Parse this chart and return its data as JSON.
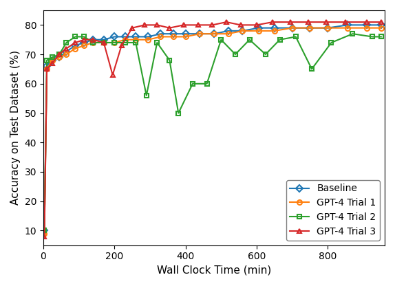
{
  "title": "",
  "xlabel": "Wall Clock Time (min)",
  "ylabel": "Accuracy on Test Dataset (%)",
  "xlim": [
    0,
    960
  ],
  "ylim": [
    5,
    85
  ],
  "yticks": [
    10,
    20,
    30,
    40,
    50,
    60,
    70,
    80
  ],
  "xticks": [
    0,
    200,
    400,
    600,
    800
  ],
  "series": {
    "Baseline": {
      "color": "#1f77b4",
      "marker": "D",
      "markersize": 5,
      "x": [
        0,
        3,
        10,
        25,
        45,
        65,
        90,
        115,
        140,
        170,
        200,
        230,
        260,
        295,
        330,
        365,
        400,
        440,
        480,
        520,
        560,
        605,
        650,
        700,
        750,
        800,
        855,
        910,
        950
      ],
      "y": [
        10,
        10,
        66,
        68,
        69,
        71,
        73,
        74,
        75,
        75,
        76,
        76,
        76,
        76,
        77,
        77,
        77,
        77,
        77,
        78,
        78,
        79,
        79,
        79,
        79,
        79,
        80,
        80,
        80
      ]
    },
    "GPT-4 Trial 1": {
      "color": "#ff7f0e",
      "marker": "o",
      "markersize": 5,
      "x": [
        0,
        3,
        10,
        25,
        45,
        65,
        90,
        115,
        140,
        170,
        200,
        230,
        260,
        295,
        330,
        365,
        400,
        440,
        480,
        520,
        560,
        605,
        650,
        700,
        750,
        800,
        855,
        910,
        950
      ],
      "y": [
        9,
        9,
        65,
        68,
        69,
        70,
        72,
        73,
        74,
        74,
        74,
        75,
        75,
        75,
        76,
        76,
        76,
        77,
        77,
        77,
        78,
        78,
        78,
        79,
        79,
        79,
        79,
        79,
        79
      ]
    },
    "GPT-4 Trial 2": {
      "color": "#2ca02c",
      "marker": "s",
      "markersize": 5,
      "x": [
        0,
        3,
        10,
        25,
        45,
        65,
        90,
        115,
        140,
        170,
        200,
        230,
        260,
        290,
        320,
        355,
        380,
        420,
        460,
        500,
        540,
        580,
        625,
        665,
        710,
        755,
        810,
        870,
        925,
        950
      ],
      "y": [
        10,
        10,
        68,
        69,
        70,
        74,
        76,
        76,
        74,
        74,
        74,
        74,
        74,
        56,
        74,
        68,
        50,
        60,
        60,
        75,
        70,
        75,
        70,
        75,
        76,
        65,
        74,
        77,
        76,
        76
      ]
    },
    "GPT-4 Trial 3": {
      "color": "#d62728",
      "marker": "^",
      "markersize": 5,
      "x": [
        0,
        3,
        10,
        25,
        45,
        65,
        90,
        115,
        140,
        170,
        195,
        220,
        250,
        285,
        320,
        355,
        395,
        435,
        475,
        515,
        555,
        600,
        645,
        695,
        745,
        795,
        850,
        910,
        950
      ],
      "y": [
        8,
        8,
        65,
        67,
        70,
        72,
        74,
        75,
        75,
        74,
        63,
        73,
        79,
        80,
        80,
        79,
        80,
        80,
        80,
        81,
        80,
        80,
        81,
        81,
        81,
        81,
        81,
        81,
        81
      ]
    }
  },
  "legend_loc": "lower right",
  "figsize": [
    5.74,
    4.16
  ],
  "dpi": 100
}
